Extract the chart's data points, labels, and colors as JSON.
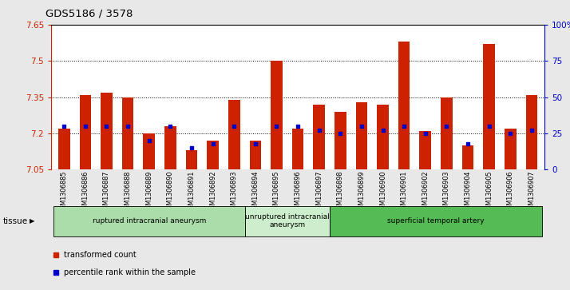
{
  "title": "GDS5186 / 3578",
  "samples": [
    "GSM1306885",
    "GSM1306886",
    "GSM1306887",
    "GSM1306888",
    "GSM1306889",
    "GSM1306890",
    "GSM1306891",
    "GSM1306892",
    "GSM1306893",
    "GSM1306894",
    "GSM1306895",
    "GSM1306896",
    "GSM1306897",
    "GSM1306898",
    "GSM1306899",
    "GSM1306900",
    "GSM1306901",
    "GSM1306902",
    "GSM1306903",
    "GSM1306904",
    "GSM1306905",
    "GSM1306906",
    "GSM1306907"
  ],
  "bar_values": [
    7.22,
    7.36,
    7.37,
    7.35,
    7.2,
    7.23,
    7.13,
    7.17,
    7.34,
    7.17,
    7.5,
    7.22,
    7.32,
    7.29,
    7.33,
    7.32,
    7.58,
    7.21,
    7.35,
    7.15,
    7.57,
    7.22,
    7.36
  ],
  "percentile_rank": [
    30,
    30,
    30,
    30,
    20,
    30,
    15,
    18,
    30,
    18,
    30,
    30,
    27,
    25,
    30,
    27,
    30,
    25,
    30,
    18,
    30,
    25,
    27
  ],
  "ylim_left": [
    7.05,
    7.65
  ],
  "ylim_right": [
    0,
    100
  ],
  "yticks_left": [
    7.05,
    7.2,
    7.35,
    7.5,
    7.65
  ],
  "yticks_right": [
    0,
    25,
    50,
    75,
    100
  ],
  "ytick_labels_left": [
    "7.05",
    "7.2",
    "7.35",
    "7.5",
    "7.65"
  ],
  "ytick_labels_right": [
    "0",
    "25",
    "50",
    "75",
    "100%"
  ],
  "hlines": [
    7.2,
    7.35,
    7.5
  ],
  "bar_color": "#cc2200",
  "sq_color": "#0000cc",
  "groups": [
    {
      "label": "ruptured intracranial aneurysm",
      "start": 0,
      "end": 9,
      "color": "#aaddaa"
    },
    {
      "label": "unruptured intracranial\naneurysm",
      "start": 9,
      "end": 13,
      "color": "#cceecc"
    },
    {
      "label": "superficial temporal artery",
      "start": 13,
      "end": 23,
      "color": "#55bb55"
    }
  ],
  "tissue_label": "tissue",
  "legend_items": [
    {
      "label": "transformed count",
      "color": "#cc2200"
    },
    {
      "label": "percentile rank within the sample",
      "color": "#0000cc"
    }
  ],
  "bg_color": "#e8e8e8",
  "plot_bg": "#ffffff"
}
